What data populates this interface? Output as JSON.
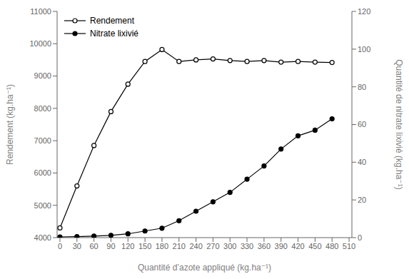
{
  "chart_data": {
    "type": "line",
    "xlabel": "Quantité d’azote appliqué (kg.ha⁻¹)",
    "ylabel": "Rendement (kg.ha⁻¹)",
    "y2label": "Quantité de nitrate lixivié (kg.ha⁻¹)",
    "x": [
      0,
      30,
      60,
      90,
      120,
      150,
      180,
      210,
      240,
      270,
      300,
      330,
      360,
      390,
      420,
      450,
      480
    ],
    "series": [
      {
        "name": "Rendement",
        "color": "#000000",
        "marker": "open_circle",
        "values": [
          4300,
          5600,
          6850,
          7900,
          8750,
          9450,
          9820,
          9450,
          9500,
          9530,
          9480,
          9450,
          9480,
          9430,
          9450,
          9430,
          9420
        ]
      },
      {
        "name": "Nitrate lixivié",
        "color": "#000000",
        "marker": "circle",
        "axis": "y2",
        "values": [
          0.3,
          0.5,
          0.8,
          1.2,
          2.0,
          3.5,
          5.0,
          9.0,
          14.0,
          19.0,
          24.0,
          31.0,
          38.0,
          47.0,
          54.0,
          57.0,
          63.0
        ]
      }
    ],
    "xlim": [
      -5,
      515
    ],
    "xticks": [
      0,
      30,
      60,
      90,
      120,
      150,
      180,
      210,
      240,
      270,
      300,
      330,
      360,
      390,
      420,
      450,
      480,
      510
    ],
    "ylim": [
      4000,
      11000
    ],
    "yticks": [
      4000,
      5000,
      6000,
      7000,
      8000,
      9000,
      10000,
      11000
    ],
    "y2lim": [
      0,
      120
    ],
    "y2ticks": [
      0,
      20,
      40,
      60,
      80,
      100,
      120
    ],
    "legend": "upper left",
    "grid": false
  }
}
